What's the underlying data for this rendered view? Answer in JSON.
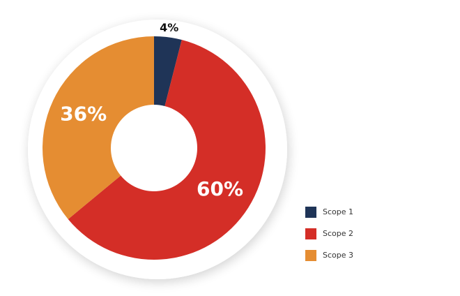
{
  "chart_data": {
    "type": "donut",
    "categories": [
      "Scope 1",
      "Scope 2",
      "Scope 3"
    ],
    "values": [
      4,
      60,
      36
    ],
    "value_labels": [
      "4%",
      "60%",
      "36%"
    ],
    "colors": [
      "#1f3457",
      "#d42e27",
      "#e58d32"
    ],
    "legend": "right"
  }
}
